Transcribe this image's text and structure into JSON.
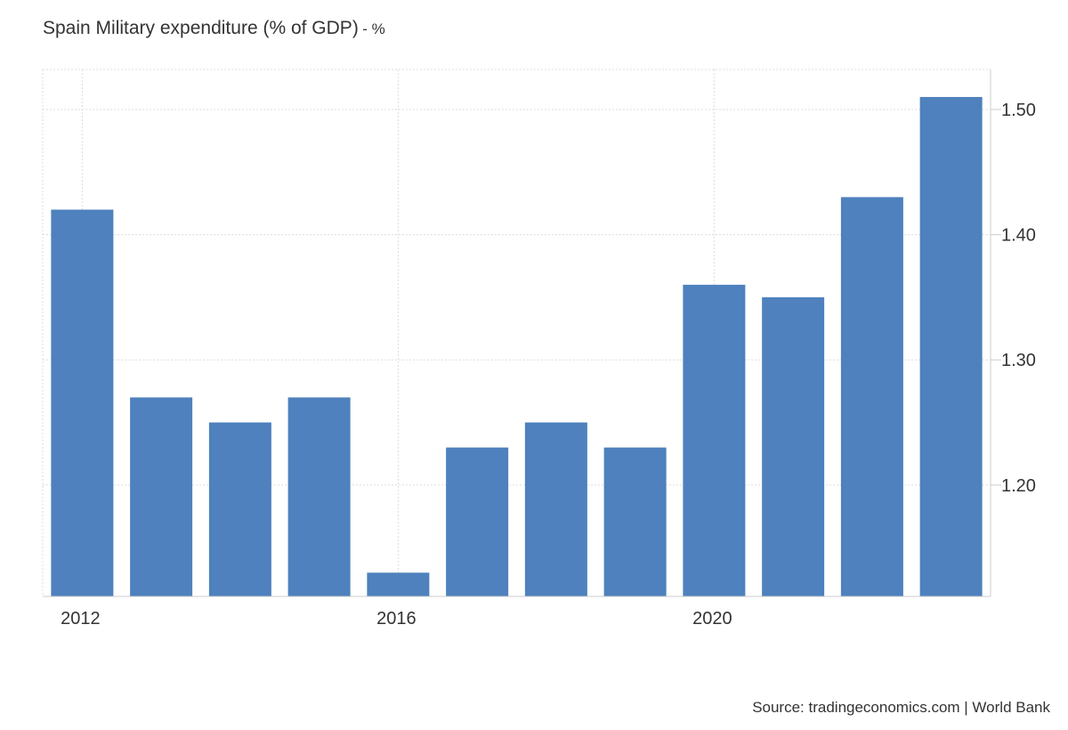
{
  "chart_data": {
    "type": "bar",
    "title": "Spain Military expenditure (% of GDP)",
    "title_unit": "- %",
    "x": [
      2012,
      2013,
      2014,
      2015,
      2016,
      2017,
      2018,
      2019,
      2020,
      2021,
      2022,
      2023
    ],
    "values": [
      1.42,
      1.27,
      1.25,
      1.27,
      1.13,
      1.23,
      1.25,
      1.23,
      1.36,
      1.35,
      1.43,
      1.51
    ],
    "x_tick_labels": [
      "2012",
      "2016",
      "2020"
    ],
    "x_tick_years": [
      2012,
      2016,
      2020
    ],
    "y_tick_labels": [
      "1.20",
      "1.30",
      "1.40",
      "1.50"
    ],
    "y_tick_values": [
      1.2,
      1.3,
      1.4,
      1.5
    ],
    "ylim": [
      1.111,
      1.532
    ],
    "y_axis_side": "right",
    "grid": true,
    "legend": "none",
    "bar_color": "#4e81bd",
    "grid_color": "#dddddd"
  },
  "footer": {
    "source": "Source: tradingeconomics.com | World Bank"
  }
}
